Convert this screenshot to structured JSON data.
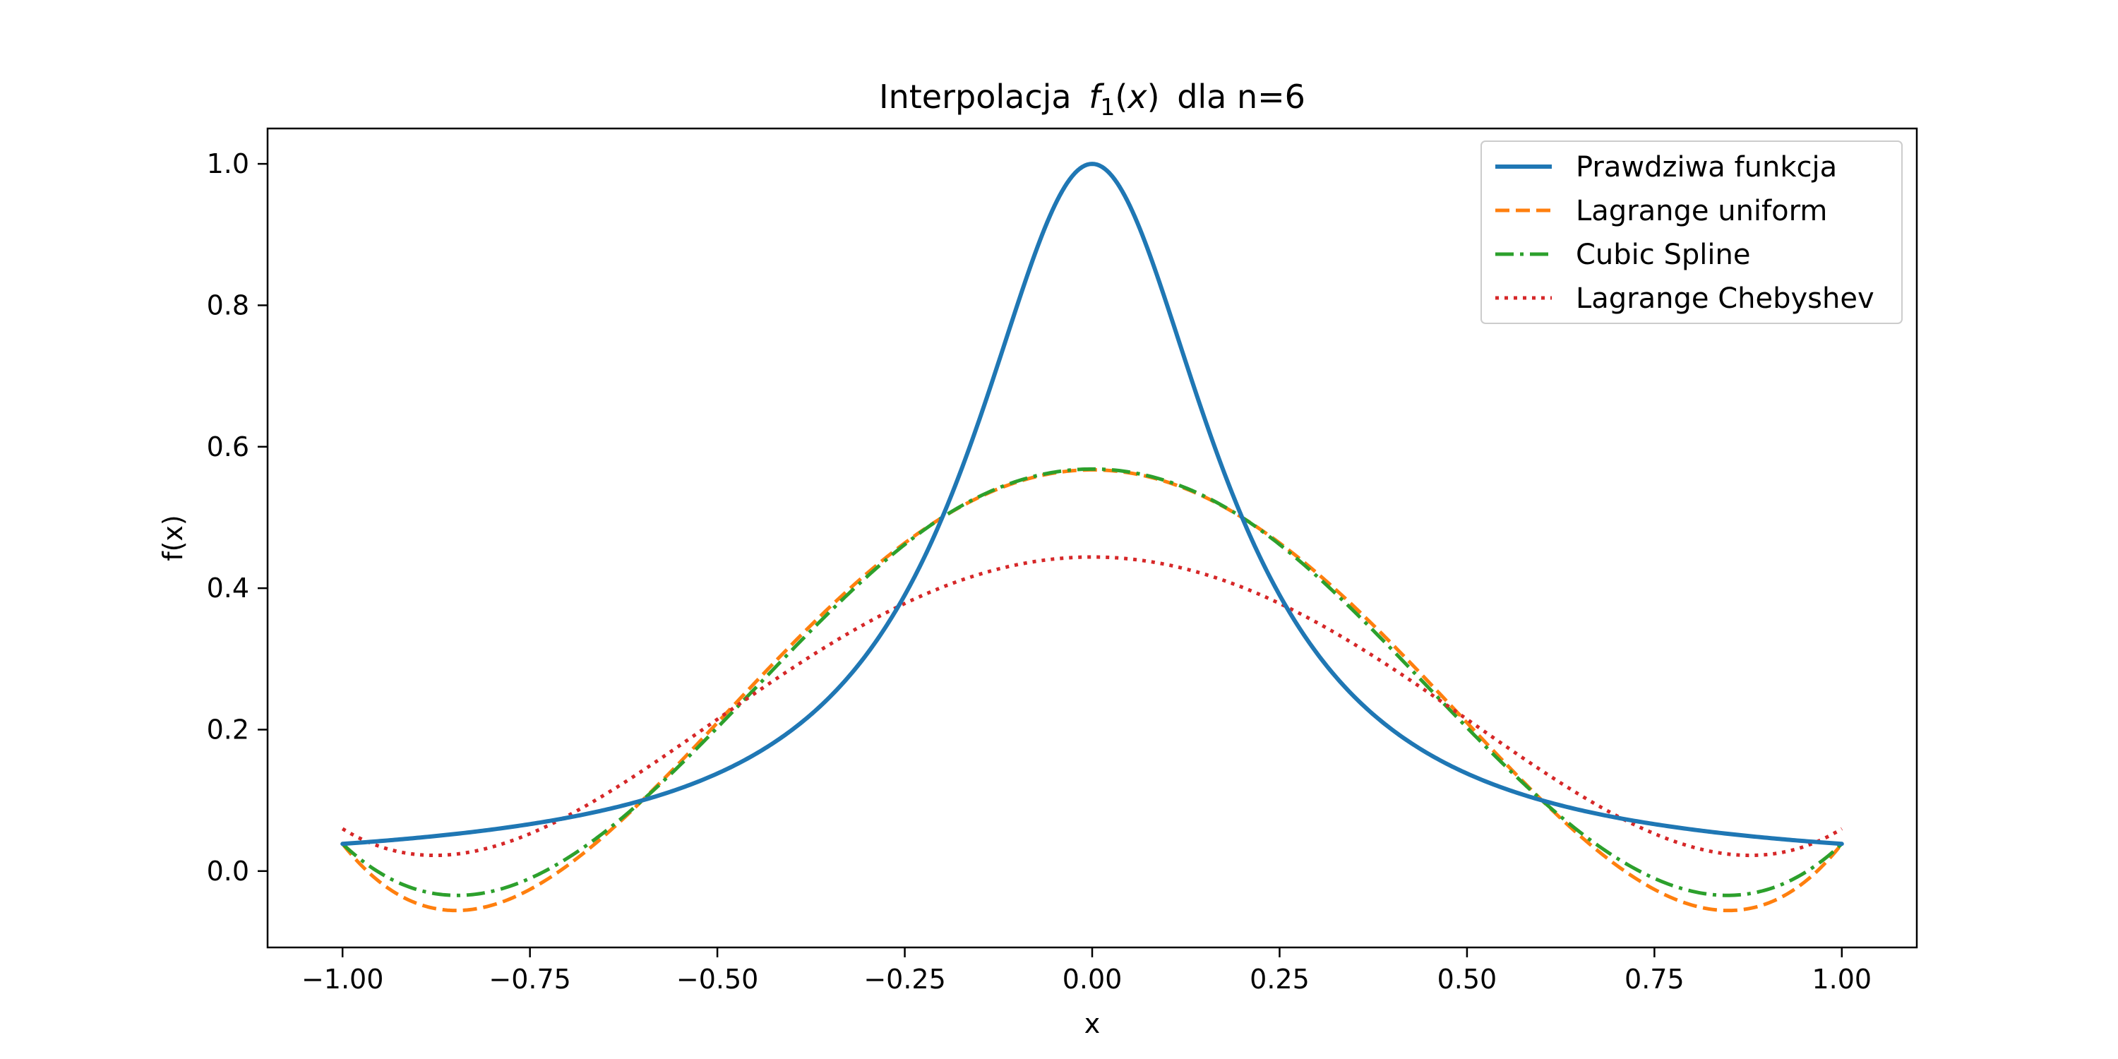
{
  "chart_data": {
    "type": "line",
    "title_prefix": "Interpolacja",
    "title_func": "f",
    "title_sub": "1",
    "title_arg_open": "(",
    "title_arg": "x",
    "title_arg_close": ")",
    "title_suffix": "dla n=6",
    "xlabel": "x",
    "ylabel": "f(x)",
    "xlim": [
      -1.1,
      1.1
    ],
    "ylim": [
      -0.108,
      1.05
    ],
    "xticks": [
      -1.0,
      -0.75,
      -0.5,
      -0.25,
      0.0,
      0.25,
      0.5,
      0.75,
      1.0
    ],
    "xtick_labels": [
      "−1.00",
      "−0.75",
      "−0.50",
      "−0.25",
      "0.00",
      "0.25",
      "0.50",
      "0.75",
      "1.00"
    ],
    "yticks": [
      0.0,
      0.2,
      0.4,
      0.6,
      0.8,
      1.0
    ],
    "ytick_labels": [
      "0.0",
      "0.2",
      "0.4",
      "0.6",
      "0.8",
      "1.0"
    ],
    "grid": false,
    "legend_position": "upper-right",
    "nodes_uniform": [
      -1.0,
      -0.6,
      -0.2,
      0.2,
      0.6,
      1.0
    ],
    "nodes_uniform_values": [
      0.0385,
      0.1,
      0.5,
      0.5,
      0.1,
      0.0385
    ],
    "series": [
      {
        "name": "Prawdziwa funkcja",
        "key": "true",
        "color": "#1f77b4",
        "style": "solid",
        "formula": "1/(1+25x^2)",
        "peak": [
          0.0,
          1.0
        ],
        "endpoints": [
          [
            -1.0,
            0.0385
          ],
          [
            1.0,
            0.0385
          ]
        ]
      },
      {
        "name": "Lagrange uniform",
        "key": "lagrange_uniform",
        "color": "#ff7f0e",
        "style": "dashed",
        "peak": [
          0.0,
          0.567
        ],
        "minima": [
          [
            -0.85,
            -0.055
          ],
          [
            0.85,
            -0.055
          ]
        ]
      },
      {
        "name": "Cubic Spline",
        "key": "cubic_spline",
        "color": "#2ca02c",
        "style": "dashdot",
        "peak": [
          0.0,
          0.567
        ],
        "minima": [
          [
            -0.85,
            -0.035
          ],
          [
            0.85,
            -0.035
          ]
        ]
      },
      {
        "name": "Lagrange Chebyshev",
        "key": "lagrange_chebyshev",
        "color": "#d62728",
        "style": "dotted",
        "peak": [
          0.0,
          0.444
        ],
        "minima": [
          [
            -0.87,
            0.022
          ],
          [
            0.87,
            0.022
          ]
        ],
        "endpoints": [
          [
            -1.0,
            0.062
          ],
          [
            1.0,
            0.062
          ]
        ]
      }
    ]
  }
}
